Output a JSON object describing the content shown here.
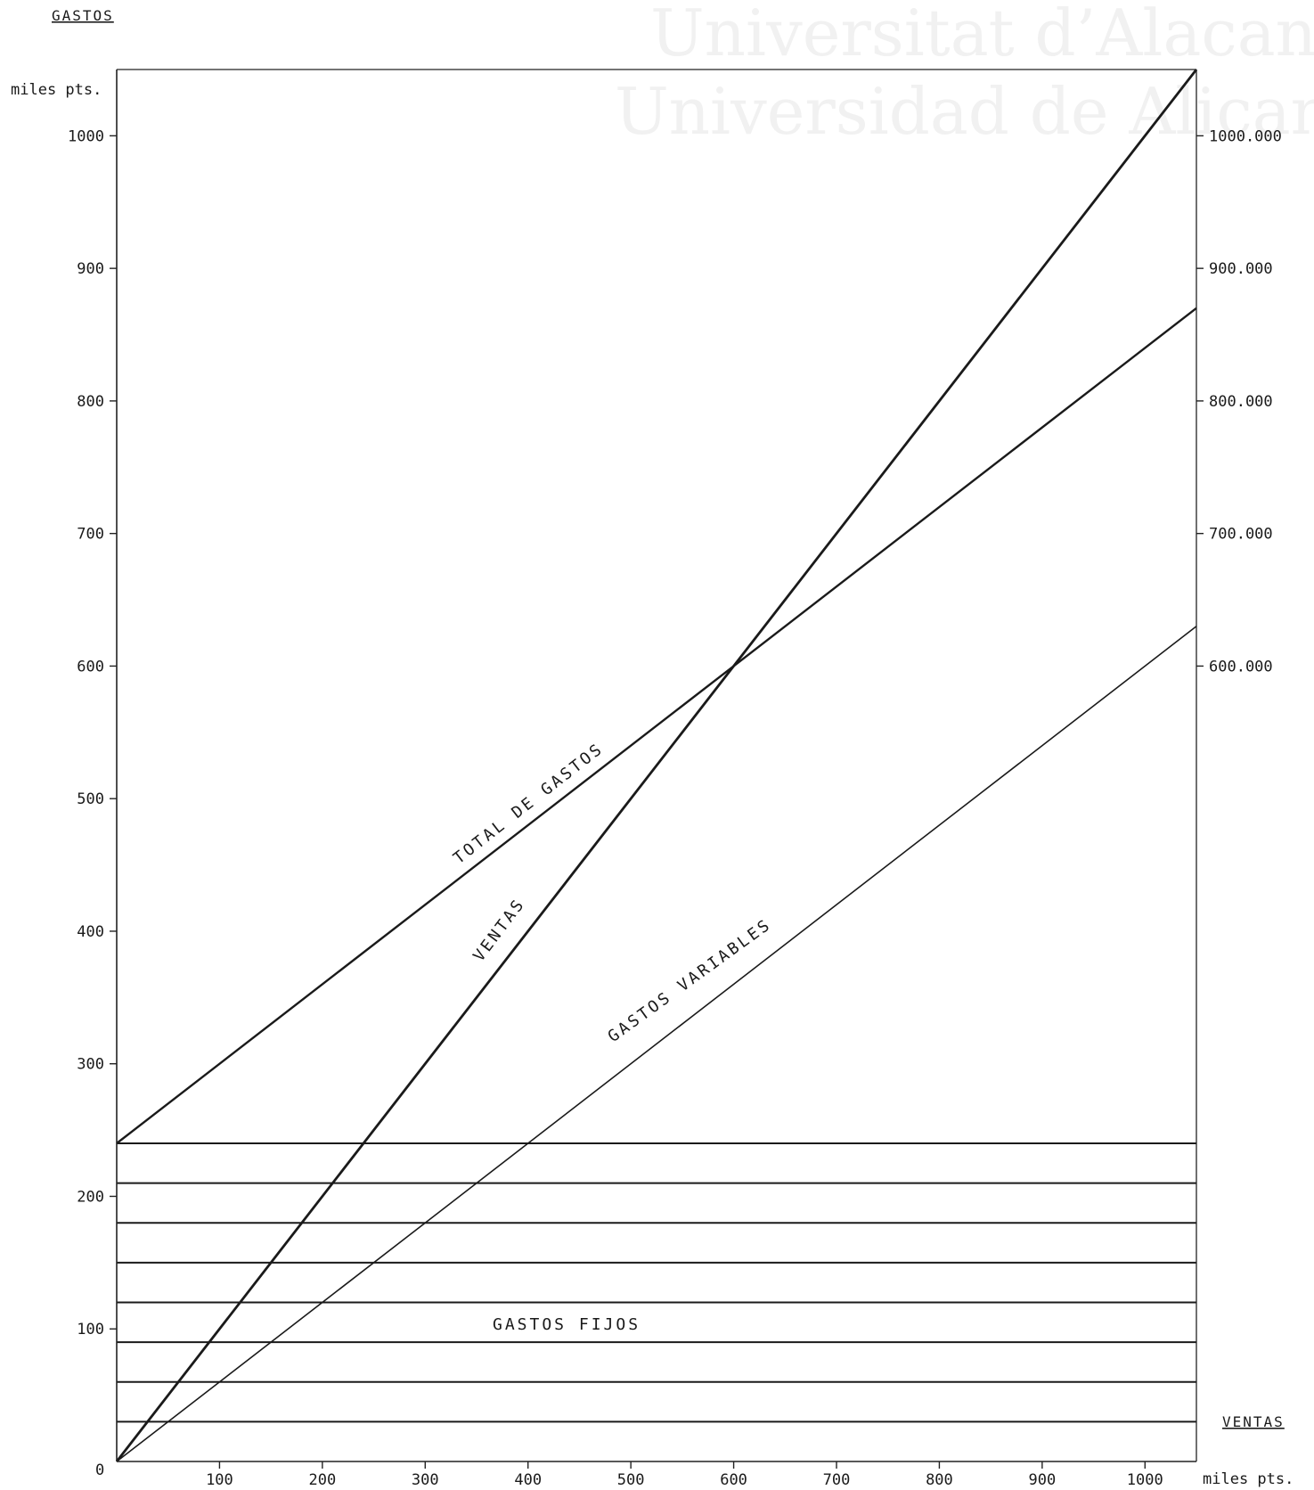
{
  "watermark": {
    "line1": "Universitat d’Alacant",
    "line2": "Universidad de Alicante"
  },
  "chart_data": {
    "type": "line",
    "title": "",
    "ylabel": "GASTOS",
    "y_unit": "miles pts.",
    "xlabel": "VENTAS",
    "x_unit": "miles pts.",
    "xlim": [
      0,
      1050
    ],
    "ylim": [
      0,
      1050
    ],
    "grid": false,
    "x_ticks": [
      100,
      200,
      300,
      400,
      500,
      600,
      700,
      800,
      900,
      1000
    ],
    "x_tick_labels": [
      "100",
      "200",
      "300",
      "400",
      "500",
      "600",
      "700",
      "800",
      "900",
      "1000"
    ],
    "x_origin_label": "0",
    "y_ticks": [
      100,
      200,
      300,
      400,
      500,
      600,
      700,
      800,
      900,
      1000
    ],
    "y_tick_labels": [
      "100",
      "200",
      "300",
      "400",
      "500",
      "600",
      "700",
      "800",
      "900",
      "1000"
    ],
    "right_y_ticks": [
      600,
      700,
      800,
      900,
      1000
    ],
    "right_y_tick_labels": [
      "600.000",
      "700.000",
      "800.000",
      "900.000",
      "1000.000"
    ],
    "series": [
      {
        "name": "VENTAS",
        "x": [
          0,
          1050
        ],
        "y": [
          0,
          1050
        ]
      },
      {
        "name": "TOTAL DE GASTOS",
        "x": [
          0,
          1050
        ],
        "y": [
          240,
          870
        ]
      },
      {
        "name": "GASTOS VARIABLES",
        "x": [
          0,
          1050
        ],
        "y": [
          0,
          630
        ]
      }
    ],
    "fixed_costs": {
      "name": "GASTOS FIJOS",
      "value": 240,
      "levels": [
        30,
        60,
        90,
        120,
        150,
        180,
        210,
        240
      ]
    }
  }
}
